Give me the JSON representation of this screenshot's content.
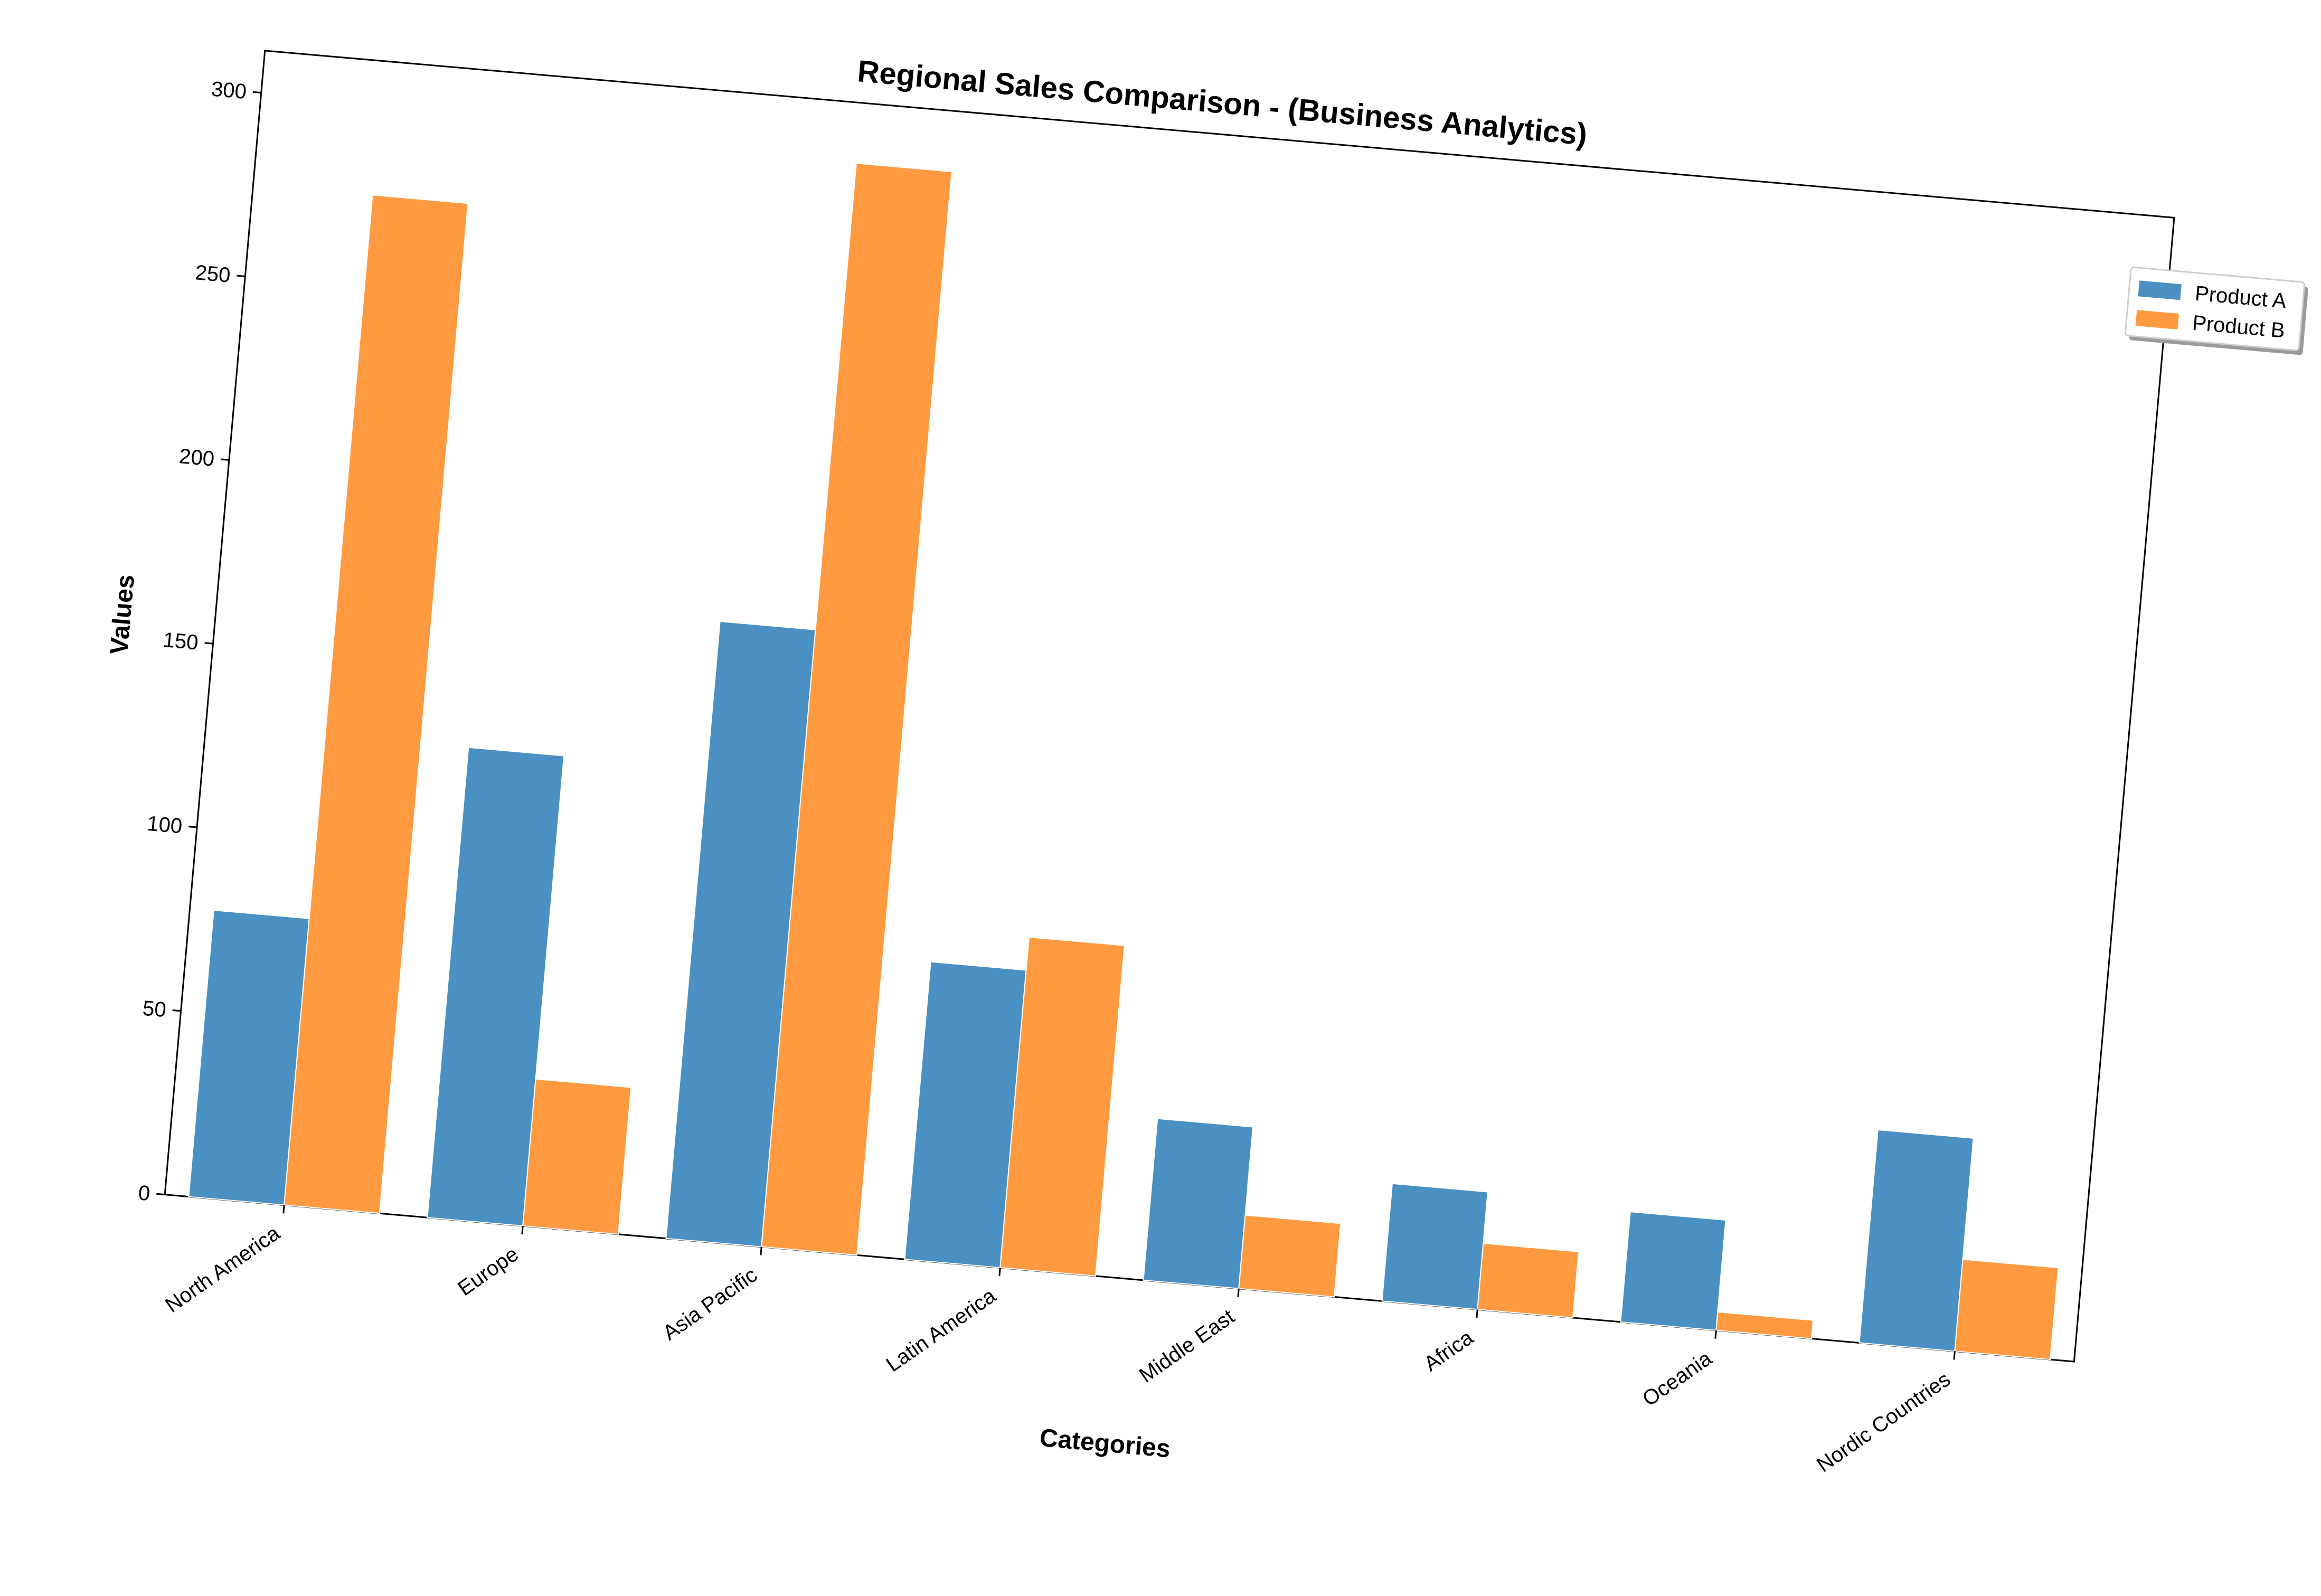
{
  "chart_data": {
    "type": "bar",
    "title": "Regional Sales Comparison - (Business Analytics)",
    "xlabel": "Categories",
    "ylabel": "Values",
    "ylim": [
      0,
      300
    ],
    "yticks": [
      0,
      50,
      100,
      150,
      200,
      250,
      300
    ],
    "grid": false,
    "legend_position": "top-right, outside plot",
    "categories": [
      "North America",
      "Europe",
      "Asia Pacific",
      "Latin America",
      "Middle East",
      "Africa",
      "Oceania",
      "Nordic Countries"
    ],
    "series": [
      {
        "name": "Product A",
        "color": "#4a90c2",
        "values": [
          78,
          128,
          168,
          81,
          44,
          32,
          30,
          58
        ]
      },
      {
        "name": "Product B",
        "color": "#ff9a40",
        "values": [
          275,
          40,
          295,
          90,
          20,
          18,
          5,
          25
        ]
      }
    ]
  }
}
